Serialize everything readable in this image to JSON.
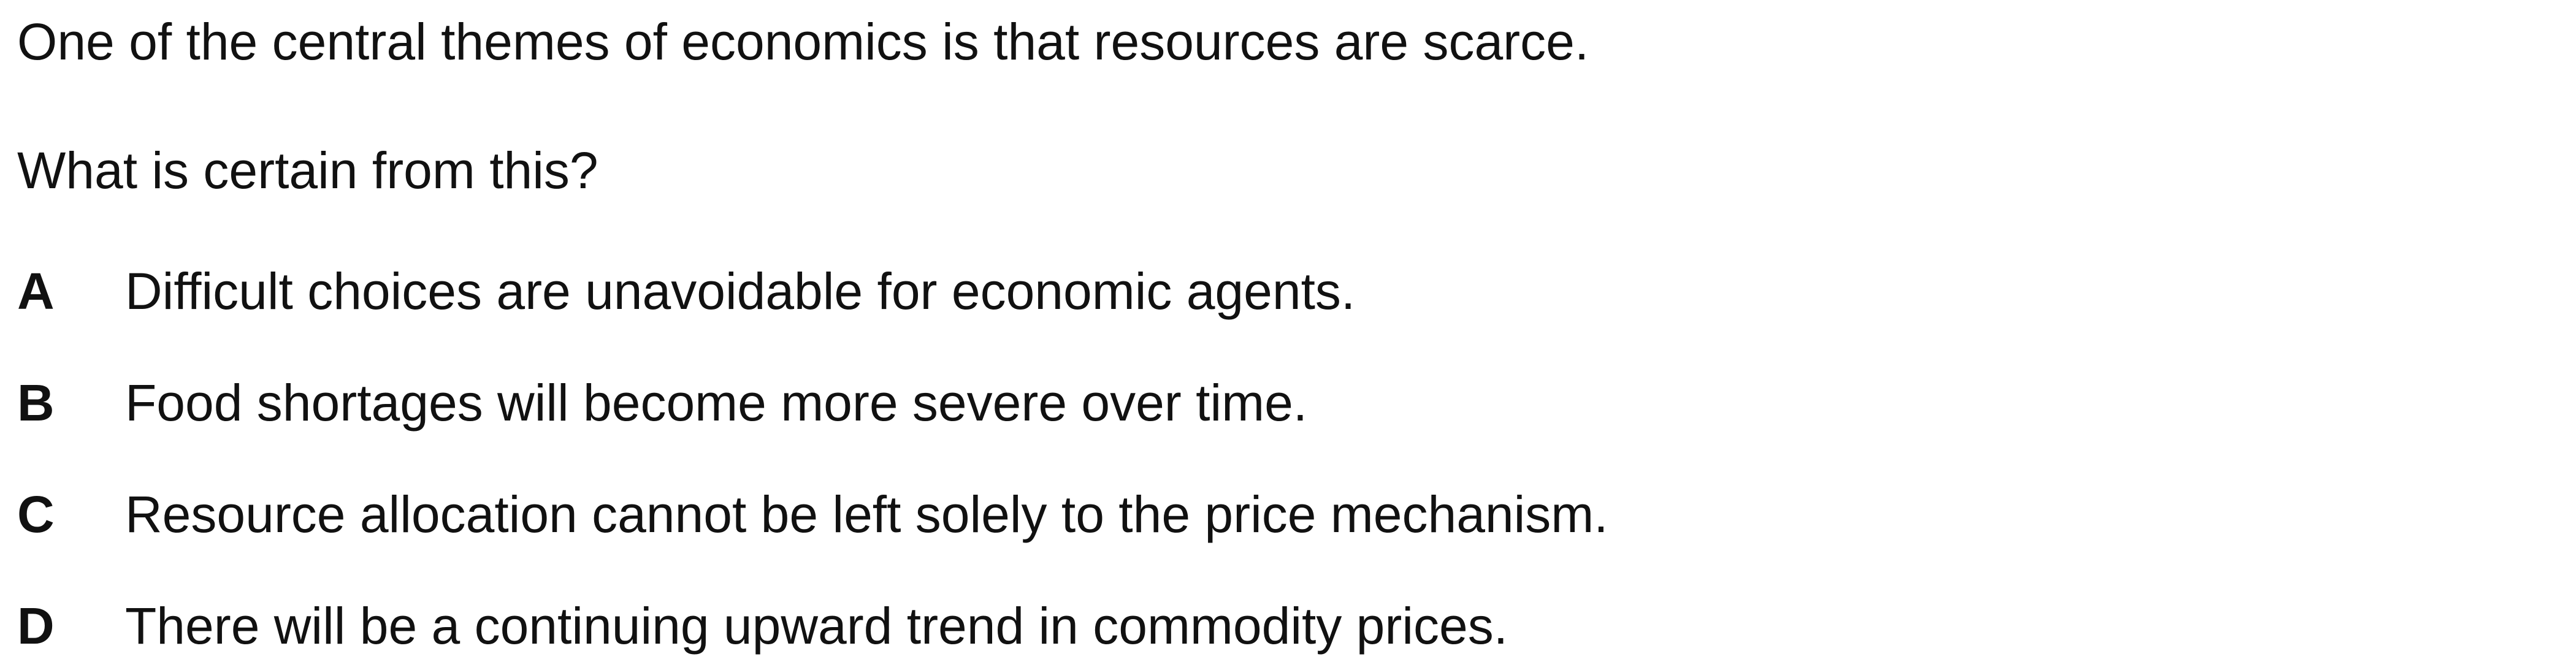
{
  "stem": "One of the central themes of economics is that resources are scarce.",
  "question": "What is certain from this?",
  "options": [
    {
      "letter": "A",
      "text": "Difficult choices are unavoidable for economic agents."
    },
    {
      "letter": "B",
      "text": "Food shortages will become more severe over time."
    },
    {
      "letter": "C",
      "text": "Resource allocation cannot be left solely to the price mechanism."
    },
    {
      "letter": "D",
      "text": "There will be a continuing upward trend in commodity prices."
    }
  ]
}
